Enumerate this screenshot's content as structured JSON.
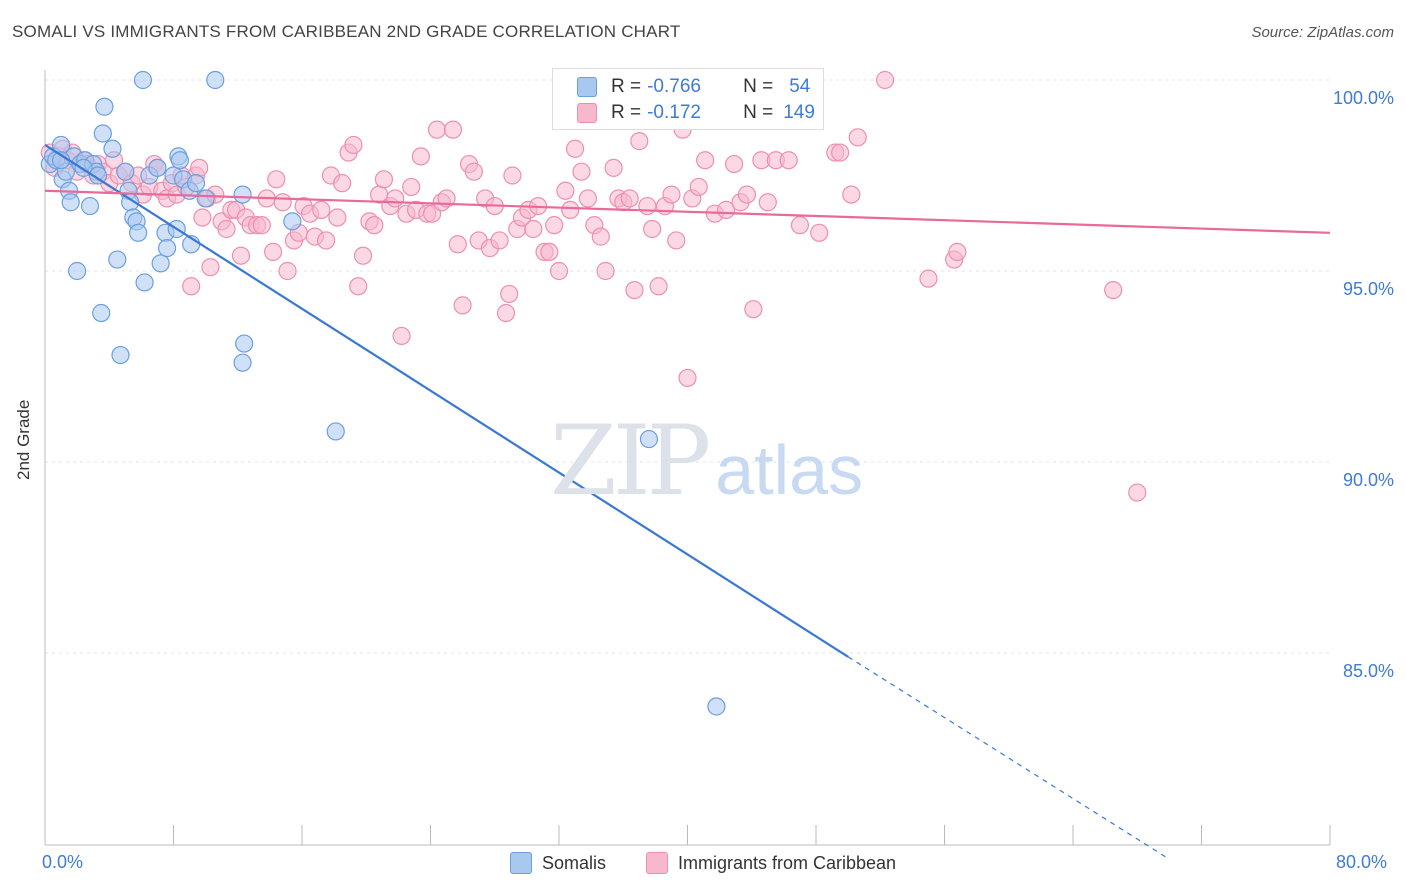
{
  "header": {
    "title": "SOMALI VS IMMIGRANTS FROM CARIBBEAN 2ND GRADE CORRELATION CHART",
    "source": "Source: ZipAtlas.com"
  },
  "watermark": {
    "zip": "ZIP",
    "atlas": "atlas"
  },
  "legend": {
    "rows": [
      {
        "r_label": "R =",
        "r_value": "-0.766",
        "n_label": "N =",
        "n_value": "54",
        "color": "#a9c8f0"
      },
      {
        "r_label": "R =",
        "r_value": "-0.172",
        "n_label": "N =",
        "n_value": "149",
        "color": "#f7b8cd"
      }
    ]
  },
  "colors": {
    "somali_fill": "#a9c8f0",
    "somali_stroke": "#6a9fe0",
    "somali_line": "#3a78d4",
    "carib_fill": "#f7b8cd",
    "carib_stroke": "#ee8fb0",
    "carib_line": "#e8699a",
    "grid": "#dde3ec",
    "tick_text": "#3e7bd8"
  },
  "chart_data": {
    "type": "scatter",
    "title": "SOMALI VS IMMIGRANTS FROM CARIBBEAN 2ND GRADE CORRELATION CHART",
    "ylabel": "2nd Grade",
    "xlim": [
      0,
      80
    ],
    "ylim": [
      80.5,
      101
    ],
    "x_tick_labels": [
      "0.0%",
      "80.0%"
    ],
    "y_ticks": [
      85,
      90,
      95,
      100
    ],
    "y_tick_labels": [
      "85.0%",
      "90.0%",
      "95.0%",
      "100.0%"
    ],
    "grid": true,
    "legend_position": "top-center",
    "series": [
      {
        "name": "Somalis",
        "points": [
          [
            0.3,
            97.8
          ],
          [
            0.5,
            98.0
          ],
          [
            0.7,
            97.9
          ],
          [
            1.0,
            98.3
          ],
          [
            1.1,
            97.4
          ],
          [
            1.3,
            97.6
          ],
          [
            1.5,
            97.1
          ],
          [
            1.6,
            96.8
          ],
          [
            1.8,
            98.0
          ],
          [
            2.0,
            95.0
          ],
          [
            2.2,
            97.8
          ],
          [
            2.5,
            97.9
          ],
          [
            2.8,
            96.7
          ],
          [
            3.0,
            97.8
          ],
          [
            3.2,
            97.6
          ],
          [
            3.5,
            93.9
          ],
          [
            3.6,
            98.6
          ],
          [
            3.7,
            99.3
          ],
          [
            4.2,
            98.2
          ],
          [
            4.5,
            95.3
          ],
          [
            4.7,
            92.8
          ],
          [
            5.0,
            97.6
          ],
          [
            5.2,
            97.1
          ],
          [
            5.3,
            96.8
          ],
          [
            5.5,
            96.4
          ],
          [
            5.7,
            96.3
          ],
          [
            5.8,
            96.0
          ],
          [
            6.1,
            100.0
          ],
          [
            6.2,
            94.7
          ],
          [
            6.5,
            97.5
          ],
          [
            7.0,
            97.7
          ],
          [
            7.2,
            95.2
          ],
          [
            7.5,
            96.0
          ],
          [
            7.6,
            95.6
          ],
          [
            8.0,
            97.5
          ],
          [
            8.2,
            96.1
          ],
          [
            8.3,
            98.0
          ],
          [
            8.4,
            97.9
          ],
          [
            8.6,
            97.4
          ],
          [
            9.0,
            97.1
          ],
          [
            9.1,
            95.7
          ],
          [
            9.4,
            97.3
          ],
          [
            10.0,
            96.9
          ],
          [
            10.6,
            100.0
          ],
          [
            12.3,
            97.0
          ],
          [
            12.4,
            93.1
          ],
          [
            12.3,
            92.6
          ],
          [
            15.4,
            96.3
          ],
          [
            18.1,
            90.8
          ],
          [
            37.6,
            90.6
          ],
          [
            41.8,
            83.6
          ],
          [
            1.0,
            97.9
          ],
          [
            2.4,
            97.7
          ],
          [
            3.3,
            97.5
          ]
        ]
      },
      {
        "name": "Immigrants from Caribbean",
        "points": [
          [
            0.3,
            98.1
          ],
          [
            0.6,
            97.7
          ],
          [
            0.9,
            98.0
          ],
          [
            1.1,
            98.2
          ],
          [
            1.4,
            97.9
          ],
          [
            1.7,
            98.1
          ],
          [
            2.0,
            97.6
          ],
          [
            2.4,
            97.9
          ],
          [
            2.6,
            97.8
          ],
          [
            3.0,
            97.5
          ],
          [
            3.3,
            97.8
          ],
          [
            3.6,
            97.6
          ],
          [
            4.0,
            97.3
          ],
          [
            4.3,
            97.9
          ],
          [
            4.6,
            97.5
          ],
          [
            5.0,
            97.6
          ],
          [
            5.4,
            97.3
          ],
          [
            5.8,
            97.5
          ],
          [
            6.1,
            97.0
          ],
          [
            6.5,
            97.2
          ],
          [
            6.8,
            97.8
          ],
          [
            7.0,
            97.7
          ],
          [
            7.3,
            97.1
          ],
          [
            7.6,
            96.9
          ],
          [
            7.9,
            97.3
          ],
          [
            8.2,
            97.0
          ],
          [
            8.5,
            97.5
          ],
          [
            8.8,
            97.2
          ],
          [
            9.1,
            94.6
          ],
          [
            9.4,
            97.5
          ],
          [
            9.6,
            97.7
          ],
          [
            9.8,
            96.4
          ],
          [
            10.1,
            96.9
          ],
          [
            10.3,
            95.1
          ],
          [
            10.6,
            97.0
          ],
          [
            11.0,
            96.3
          ],
          [
            11.3,
            96.1
          ],
          [
            11.6,
            96.6
          ],
          [
            11.9,
            96.6
          ],
          [
            12.2,
            95.4
          ],
          [
            12.5,
            96.4
          ],
          [
            12.8,
            96.2
          ],
          [
            13.2,
            96.2
          ],
          [
            13.5,
            96.2
          ],
          [
            13.8,
            96.9
          ],
          [
            14.2,
            95.5
          ],
          [
            14.4,
            97.4
          ],
          [
            14.8,
            96.8
          ],
          [
            15.1,
            95.0
          ],
          [
            15.5,
            95.8
          ],
          [
            15.8,
            96.0
          ],
          [
            16.1,
            96.7
          ],
          [
            16.5,
            96.5
          ],
          [
            16.8,
            95.9
          ],
          [
            17.2,
            96.6
          ],
          [
            17.5,
            95.8
          ],
          [
            17.8,
            97.5
          ],
          [
            18.2,
            96.4
          ],
          [
            18.5,
            97.3
          ],
          [
            18.9,
            98.1
          ],
          [
            19.2,
            98.3
          ],
          [
            19.5,
            94.6
          ],
          [
            19.8,
            95.4
          ],
          [
            20.2,
            96.3
          ],
          [
            20.5,
            96.2
          ],
          [
            20.8,
            97.0
          ],
          [
            21.1,
            97.4
          ],
          [
            21.5,
            96.7
          ],
          [
            21.8,
            96.9
          ],
          [
            22.2,
            93.3
          ],
          [
            22.5,
            96.5
          ],
          [
            22.8,
            97.2
          ],
          [
            23.1,
            96.6
          ],
          [
            23.4,
            98.0
          ],
          [
            23.8,
            96.5
          ],
          [
            24.1,
            96.5
          ],
          [
            24.4,
            98.7
          ],
          [
            24.7,
            96.8
          ],
          [
            25.0,
            96.9
          ],
          [
            25.4,
            98.7
          ],
          [
            25.7,
            95.7
          ],
          [
            26.0,
            94.1
          ],
          [
            26.4,
            97.8
          ],
          [
            26.7,
            97.6
          ],
          [
            27.0,
            95.8
          ],
          [
            27.4,
            96.9
          ],
          [
            27.7,
            95.6
          ],
          [
            28.0,
            96.7
          ],
          [
            28.3,
            95.8
          ],
          [
            28.7,
            93.9
          ],
          [
            28.9,
            94.4
          ],
          [
            29.1,
            97.5
          ],
          [
            29.4,
            96.1
          ],
          [
            29.7,
            96.4
          ],
          [
            30.1,
            96.6
          ],
          [
            30.4,
            96.1
          ],
          [
            30.7,
            96.7
          ],
          [
            31.1,
            95.5
          ],
          [
            31.4,
            95.5
          ],
          [
            31.7,
            96.2
          ],
          [
            32.0,
            95.0
          ],
          [
            32.4,
            97.1
          ],
          [
            32.7,
            96.6
          ],
          [
            33.0,
            98.2
          ],
          [
            33.4,
            97.6
          ],
          [
            33.8,
            96.9
          ],
          [
            34.2,
            96.2
          ],
          [
            34.6,
            95.9
          ],
          [
            34.9,
            95.0
          ],
          [
            35.4,
            97.7
          ],
          [
            35.7,
            96.9
          ],
          [
            36.0,
            96.8
          ],
          [
            36.4,
            96.9
          ],
          [
            36.7,
            94.5
          ],
          [
            37.0,
            98.4
          ],
          [
            37.5,
            96.7
          ],
          [
            37.8,
            96.1
          ],
          [
            38.2,
            94.6
          ],
          [
            38.6,
            96.7
          ],
          [
            39.0,
            97.0
          ],
          [
            39.3,
            95.8
          ],
          [
            39.7,
            98.7
          ],
          [
            40.0,
            92.2
          ],
          [
            40.3,
            96.9
          ],
          [
            40.7,
            97.2
          ],
          [
            41.1,
            97.9
          ],
          [
            41.7,
            96.5
          ],
          [
            42.4,
            96.6
          ],
          [
            42.9,
            97.8
          ],
          [
            43.3,
            96.8
          ],
          [
            43.7,
            97.0
          ],
          [
            44.1,
            94.0
          ],
          [
            44.6,
            97.9
          ],
          [
            45.0,
            96.8
          ],
          [
            45.5,
            97.9
          ],
          [
            46.3,
            97.9
          ],
          [
            47.0,
            96.2
          ],
          [
            47.4,
            100.0
          ],
          [
            48.2,
            96.0
          ],
          [
            49.2,
            98.1
          ],
          [
            49.5,
            98.1
          ],
          [
            50.2,
            97.0
          ],
          [
            50.6,
            98.5
          ],
          [
            52.3,
            100.0
          ],
          [
            55.0,
            94.8
          ],
          [
            56.6,
            95.3
          ],
          [
            56.8,
            95.5
          ],
          [
            68.0,
            89.2
          ],
          [
            66.5,
            94.5
          ]
        ]
      }
    ],
    "trend_lines": [
      {
        "series": "Somalis",
        "x": [
          0,
          50,
          70
        ],
        "y": [
          98.3,
          84.9,
          79.6
        ],
        "dashed_from_x": 50
      },
      {
        "series": "Immigrants from Caribbean",
        "x": [
          0,
          80
        ],
        "y": [
          97.1,
          96.0
        ]
      }
    ]
  },
  "bottom_legend": {
    "items": [
      {
        "label": "Somalis"
      },
      {
        "label": "Immigrants from Caribbean"
      }
    ]
  }
}
